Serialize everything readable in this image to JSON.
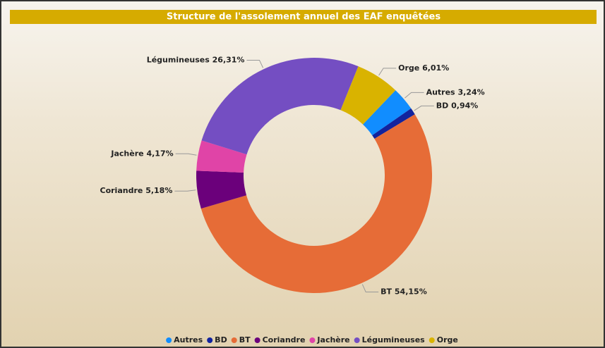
{
  "chart_data": {
    "type": "donut",
    "title": "Structure de l'assolement annuel des EAF enquêtées",
    "categories": [
      "Autres",
      "BD",
      "BT",
      "Coriandre",
      "Jachère",
      "Légumineuses",
      "Orge"
    ],
    "values": [
      3.24,
      0.94,
      54.15,
      5.18,
      4.17,
      26.31,
      6.01
    ],
    "value_labels": [
      "3,24%",
      "0,94%",
      "54,15%",
      "5,18%",
      "4,17%",
      "26,31%",
      "6,01%"
    ],
    "colors": [
      "#118DFF",
      "#12239E",
      "#E66C37",
      "#6B007B",
      "#E044A7",
      "#744EC2",
      "#D9B300"
    ],
    "legend": "bottom"
  }
}
